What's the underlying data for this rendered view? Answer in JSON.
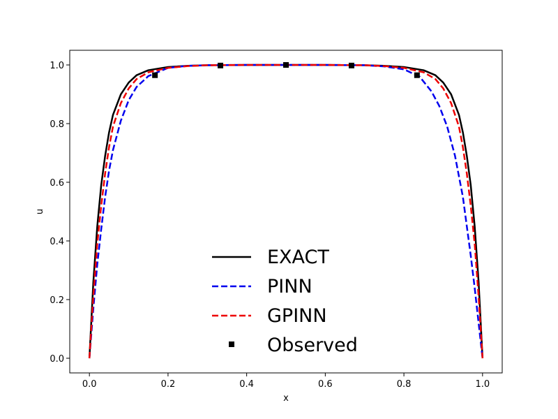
{
  "chart_data": {
    "type": "line",
    "xlabel": "x",
    "ylabel": "u",
    "xlim": [
      -0.05,
      1.05
    ],
    "ylim": [
      -0.05,
      1.05
    ],
    "xticks": [
      "0.0",
      "0.2",
      "0.4",
      "0.6",
      "0.8",
      "1.0"
    ],
    "yticks": [
      "0.0",
      "0.2",
      "0.4",
      "0.6",
      "0.8",
      "1.0"
    ],
    "grid": false,
    "legend_position": "lower-center",
    "series": [
      {
        "name": "EXACT",
        "style": "solid",
        "color": "#000000",
        "x": [
          0,
          0.01,
          0.02,
          0.03,
          0.04,
          0.05,
          0.06,
          0.08,
          0.1,
          0.12,
          0.15,
          0.2,
          0.25,
          0.3,
          0.4,
          0.5,
          0.6,
          0.7,
          0.75,
          0.8,
          0.85,
          0.88,
          0.9,
          0.92,
          0.94,
          0.95,
          0.96,
          0.97,
          0.98,
          0.99,
          1.0
        ],
        "y": [
          0,
          0.26,
          0.45,
          0.59,
          0.69,
          0.77,
          0.83,
          0.9,
          0.94,
          0.965,
          0.982,
          0.993,
          0.997,
          0.999,
          1.0,
          1.0,
          1.0,
          0.999,
          0.997,
          0.993,
          0.982,
          0.965,
          0.94,
          0.9,
          0.83,
          0.77,
          0.69,
          0.59,
          0.45,
          0.26,
          0
        ]
      },
      {
        "name": "PINN",
        "style": "dashed",
        "color": "#0000ee",
        "x": [
          0,
          0.01,
          0.02,
          0.03,
          0.04,
          0.05,
          0.06,
          0.08,
          0.1,
          0.12,
          0.15,
          0.2,
          0.25,
          0.3,
          0.4,
          0.5,
          0.6,
          0.7,
          0.75,
          0.8,
          0.84,
          0.87,
          0.89,
          0.91,
          0.93,
          0.95,
          0.96,
          0.97,
          0.98,
          0.99,
          1.0
        ],
        "y": [
          0,
          0.17,
          0.32,
          0.44,
          0.55,
          0.64,
          0.71,
          0.81,
          0.88,
          0.925,
          0.962,
          0.99,
          0.997,
          0.999,
          1.0,
          1.0,
          1.0,
          0.999,
          0.995,
          0.985,
          0.96,
          0.91,
          0.86,
          0.79,
          0.69,
          0.55,
          0.45,
          0.35,
          0.24,
          0.12,
          0
        ]
      },
      {
        "name": "GPINN",
        "style": "dashed",
        "color": "#ee0000",
        "x": [
          0,
          0.01,
          0.02,
          0.03,
          0.04,
          0.05,
          0.06,
          0.08,
          0.1,
          0.12,
          0.15,
          0.2,
          0.25,
          0.3,
          0.4,
          0.5,
          0.6,
          0.7,
          0.75,
          0.8,
          0.85,
          0.88,
          0.9,
          0.92,
          0.94,
          0.95,
          0.96,
          0.97,
          0.98,
          0.99,
          1.0
        ],
        "y": [
          0,
          0.21,
          0.39,
          0.52,
          0.63,
          0.72,
          0.79,
          0.87,
          0.92,
          0.952,
          0.975,
          0.99,
          0.996,
          0.999,
          1.0,
          1.0,
          1.0,
          0.999,
          0.996,
          0.99,
          0.975,
          0.952,
          0.92,
          0.87,
          0.79,
          0.72,
          0.63,
          0.52,
          0.39,
          0.21,
          0
        ]
      },
      {
        "name": "Observed",
        "style": "markers",
        "color": "#000000",
        "x": [
          0.1667,
          0.3333,
          0.5,
          0.6667,
          0.8333
        ],
        "y": [
          0.965,
          0.998,
          1.0,
          0.998,
          0.965
        ]
      }
    ]
  }
}
